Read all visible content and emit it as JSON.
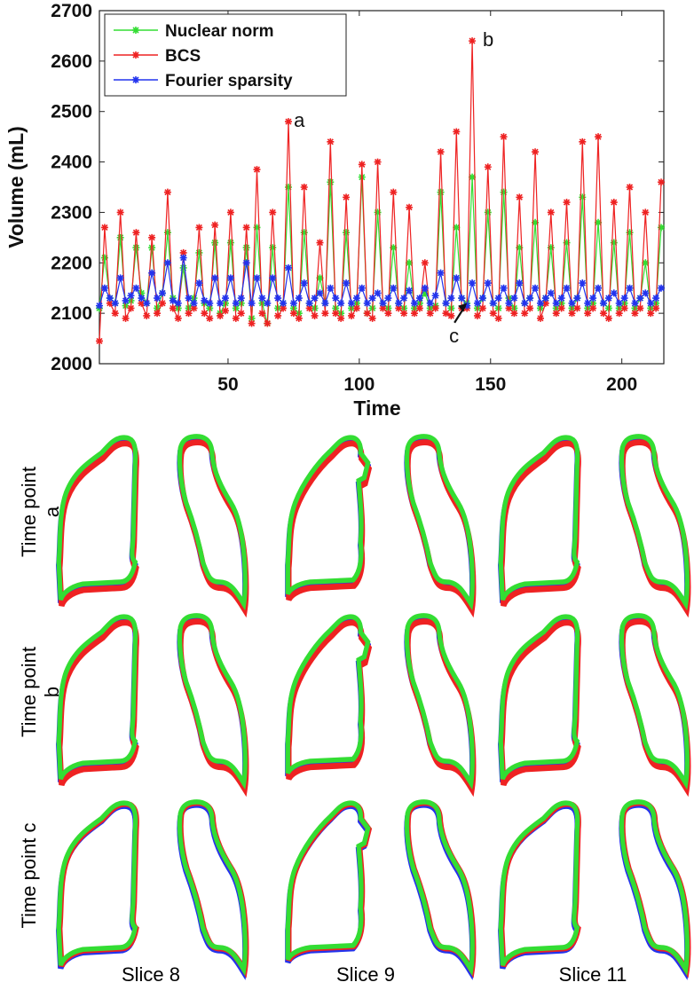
{
  "chart_data": {
    "type": "line",
    "xlabel": "Time",
    "ylabel": "Volume (mL)",
    "xlim": [
      1,
      216
    ],
    "ylim": [
      2000,
      2700
    ],
    "xticks": [
      50,
      100,
      150,
      200
    ],
    "yticks": [
      2000,
      2100,
      2200,
      2300,
      2400,
      2500,
      2600,
      2700
    ],
    "grid": false,
    "legend_position": "top-left",
    "series": [
      {
        "name": "Nuclear norm",
        "color": "#33dd33",
        "x": [
          1,
          3,
          5,
          7,
          9,
          11,
          13,
          15,
          17,
          19,
          21,
          23,
          25,
          27,
          29,
          31,
          33,
          35,
          37,
          39,
          41,
          43,
          45,
          47,
          49,
          51,
          53,
          55,
          57,
          59,
          61,
          63,
          65,
          67,
          69,
          71,
          73,
          75,
          77,
          79,
          81,
          83,
          85,
          87,
          89,
          91,
          93,
          95,
          97,
          99,
          101,
          103,
          105,
          107,
          109,
          111,
          113,
          115,
          117,
          119,
          121,
          123,
          125,
          127,
          129,
          131,
          133,
          135,
          137,
          139,
          141,
          143,
          145,
          147,
          149,
          151,
          153,
          155,
          157,
          159,
          161,
          163,
          165,
          167,
          169,
          171,
          173,
          175,
          177,
          179,
          181,
          183,
          185,
          187,
          189,
          191,
          193,
          195,
          197,
          199,
          201,
          203,
          205,
          207,
          209,
          211,
          213,
          215
        ],
        "y": [
          2110,
          2210,
          2130,
          2120,
          2250,
          2115,
          2125,
          2230,
          2140,
          2120,
          2230,
          2110,
          2140,
          2260,
          2130,
          2110,
          2190,
          2110,
          2130,
          2220,
          2120,
          2110,
          2240,
          2100,
          2120,
          2240,
          2110,
          2120,
          2230,
          2090,
          2270,
          2120,
          2080,
          2230,
          2110,
          2120,
          2350,
          2110,
          2100,
          2260,
          2120,
          2110,
          2170,
          2120,
          2360,
          2110,
          2100,
          2260,
          2110,
          2120,
          2370,
          2100,
          2110,
          2300,
          2120,
          2110,
          2230,
          2120,
          2110,
          2200,
          2110,
          2120,
          2140,
          2110,
          2115,
          2340,
          2120,
          2110,
          2270,
          2130,
          2120,
          2370,
          2110,
          2130,
          2300,
          2120,
          2110,
          2340,
          2130,
          2110,
          2230,
          2120,
          2130,
          2280,
          2110,
          2130,
          2230,
          2110,
          2120,
          2240,
          2110,
          2130,
          2330,
          2110,
          2120,
          2280,
          2120,
          2110,
          2240,
          2110,
          2120,
          2260,
          2110,
          2130,
          2200,
          2110,
          2120,
          2270
        ]
      },
      {
        "name": "BCS",
        "color": "#ee2222",
        "x": [
          1,
          3,
          5,
          7,
          9,
          11,
          13,
          15,
          17,
          19,
          21,
          23,
          25,
          27,
          29,
          31,
          33,
          35,
          37,
          39,
          41,
          43,
          45,
          47,
          49,
          51,
          53,
          55,
          57,
          59,
          61,
          63,
          65,
          67,
          69,
          71,
          73,
          75,
          77,
          79,
          81,
          83,
          85,
          87,
          89,
          91,
          93,
          95,
          97,
          99,
          101,
          103,
          105,
          107,
          109,
          111,
          113,
          115,
          117,
          119,
          121,
          123,
          125,
          127,
          129,
          131,
          133,
          135,
          137,
          139,
          141,
          143,
          145,
          147,
          149,
          151,
          153,
          155,
          157,
          159,
          161,
          163,
          165,
          167,
          169,
          171,
          173,
          175,
          177,
          179,
          181,
          183,
          185,
          187,
          189,
          191,
          193,
          195,
          197,
          199,
          201,
          203,
          205,
          207,
          209,
          211,
          213,
          215
        ],
        "y": [
          2045,
          2270,
          2120,
          2100,
          2300,
          2090,
          2110,
          2260,
          2120,
          2095,
          2250,
          2100,
          2120,
          2340,
          2110,
          2090,
          2220,
          2100,
          2110,
          2270,
          2100,
          2090,
          2275,
          2095,
          2105,
          2300,
          2090,
          2100,
          2270,
          2080,
          2385,
          2100,
          2080,
          2300,
          2095,
          2110,
          2480,
          2100,
          2090,
          2350,
          2110,
          2095,
          2240,
          2100,
          2440,
          2100,
          2090,
          2330,
          2095,
          2110,
          2395,
          2100,
          2090,
          2400,
          2110,
          2100,
          2340,
          2110,
          2100,
          2310,
          2100,
          2110,
          2200,
          2100,
          2110,
          2420,
          2100,
          2095,
          2460,
          2110,
          2110,
          2640,
          2095,
          2110,
          2390,
          2100,
          2090,
          2450,
          2110,
          2100,
          2330,
          2100,
          2110,
          2420,
          2090,
          2120,
          2300,
          2100,
          2110,
          2320,
          2100,
          2110,
          2440,
          2100,
          2110,
          2450,
          2100,
          2090,
          2320,
          2100,
          2110,
          2350,
          2100,
          2110,
          2300,
          2100,
          2110,
          2360
        ]
      },
      {
        "name": "Fourier sparsity",
        "color": "#2233ee",
        "x": [
          1,
          3,
          5,
          7,
          9,
          11,
          13,
          15,
          17,
          19,
          21,
          23,
          25,
          27,
          29,
          31,
          33,
          35,
          37,
          39,
          41,
          43,
          45,
          47,
          49,
          51,
          53,
          55,
          57,
          59,
          61,
          63,
          65,
          67,
          69,
          71,
          73,
          75,
          77,
          79,
          81,
          83,
          85,
          87,
          89,
          91,
          93,
          95,
          97,
          99,
          101,
          103,
          105,
          107,
          109,
          111,
          113,
          115,
          117,
          119,
          121,
          123,
          125,
          127,
          129,
          131,
          133,
          135,
          137,
          139,
          141,
          143,
          145,
          147,
          149,
          151,
          153,
          155,
          157,
          159,
          161,
          163,
          165,
          167,
          169,
          171,
          173,
          175,
          177,
          179,
          181,
          183,
          185,
          187,
          189,
          191,
          193,
          195,
          197,
          199,
          201,
          203,
          205,
          207,
          209,
          211,
          213,
          215
        ],
        "y": [
          2115,
          2150,
          2130,
          2120,
          2170,
          2125,
          2135,
          2150,
          2130,
          2120,
          2180,
          2130,
          2140,
          2200,
          2125,
          2120,
          2210,
          2130,
          2120,
          2160,
          2125,
          2120,
          2170,
          2120,
          2130,
          2170,
          2120,
          2130,
          2200,
          2120,
          2170,
          2130,
          2120,
          2170,
          2130,
          2120,
          2190,
          2120,
          2130,
          2160,
          2120,
          2130,
          2140,
          2120,
          2150,
          2130,
          2120,
          2160,
          2120,
          2130,
          2150,
          2120,
          2130,
          2140,
          2120,
          2130,
          2150,
          2120,
          2130,
          2145,
          2120,
          2130,
          2150,
          2120,
          2135,
          2180,
          2120,
          2130,
          2170,
          2130,
          2115,
          2160,
          2120,
          2130,
          2160,
          2120,
          2130,
          2150,
          2120,
          2130,
          2160,
          2120,
          2130,
          2150,
          2120,
          2130,
          2140,
          2120,
          2130,
          2150,
          2120,
          2130,
          2160,
          2120,
          2130,
          2150,
          2120,
          2130,
          2140,
          2120,
          2130,
          2150,
          2120,
          2130,
          2140,
          2120,
          2130,
          2150
        ]
      }
    ],
    "annotations": [
      {
        "label": "a",
        "x": 71,
        "y": 2480
      },
      {
        "label": "b",
        "x": 143,
        "y": 2640
      },
      {
        "label": "c",
        "x": 141,
        "y": 2120,
        "arrow": true
      }
    ]
  },
  "figure": {
    "row_labels": [
      "Time point a",
      "Time point b",
      "Time point c"
    ],
    "col_labels": [
      "Slice 8",
      "Slice 9",
      "Slice 11"
    ]
  }
}
